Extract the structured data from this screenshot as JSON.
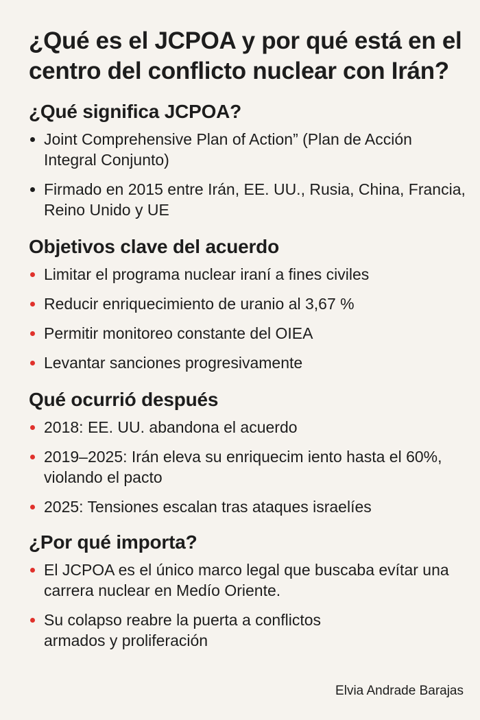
{
  "title": "¿Qué es el JCPOA y por qué está en el centro del conflicto nuclear con Irán?",
  "sections": [
    {
      "heading": "¿Qué significa JCPOA?",
      "bullet_color": "#1d1d1d",
      "items": [
        "Joint Comprehensive Plan of Action” (Plan de Acción Integral Conjunto)",
        "Firmado en 2015 entre Irán, EE. UU., Rusia, China, Francia, Reino Unido y UE"
      ]
    },
    {
      "heading": "Objetivos clave del acuerdo",
      "bullet_color": "#e0312b",
      "items": [
        "Limitar el programa nuclear iraní a fines civiles",
        "Reducir enriquecimiento de uranio al 3,67 %",
        "Permitir monitoreo constante del OIEA",
        "Levantar sanciones progresivamente"
      ]
    },
    {
      "heading": "Qué ocurrió después",
      "bullet_color": "#e0312b",
      "items": [
        "2018: EE. UU. abandona el acuerdo",
        "2019–2025: Irán eleva su enriquecim iento hasta el 60%, violando el pacto",
        "2025: Tensiones escalan tras ataques israelíes"
      ]
    },
    {
      "heading": "¿Por qué importa?",
      "bullet_color": "#e0312b",
      "items": [
        "El JCPOA es el único marco legal que buscaba evítar una carrera nuclear en Medío Oriente.",
        "Su colapso reabre la puerta a conflictos armados y proliferación"
      ]
    }
  ],
  "signature": "Elvia Andrade Barajas"
}
